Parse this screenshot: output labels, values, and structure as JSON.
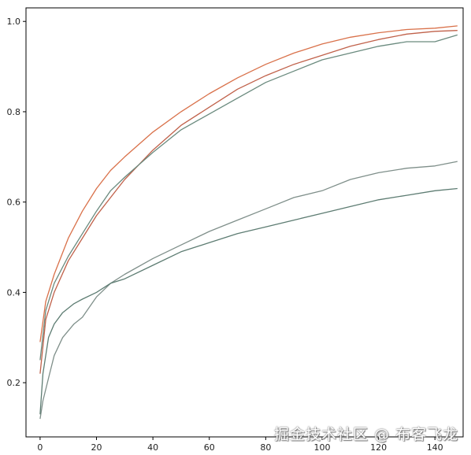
{
  "chart_data": {
    "type": "line",
    "title": "",
    "xlabel": "",
    "ylabel": "",
    "xlim": [
      -5,
      150
    ],
    "ylim": [
      0.08,
      1.03
    ],
    "xticks": [
      0,
      20,
      40,
      60,
      80,
      100,
      120,
      140
    ],
    "yticks": [
      0.2,
      0.4,
      0.6,
      0.8,
      1.0
    ],
    "ytick_labels": [
      "0.2",
      "0.4",
      "0.6",
      "0.8",
      "1.0"
    ],
    "grid": false,
    "legend": "none",
    "series": [
      {
        "color": "#d9714a",
        "points": [
          [
            0,
            0.29
          ],
          [
            2,
            0.38
          ],
          [
            5,
            0.44
          ],
          [
            10,
            0.52
          ],
          [
            15,
            0.58
          ],
          [
            20,
            0.63
          ],
          [
            25,
            0.67
          ],
          [
            30,
            0.7
          ],
          [
            40,
            0.755
          ],
          [
            50,
            0.8
          ],
          [
            60,
            0.84
          ],
          [
            70,
            0.875
          ],
          [
            80,
            0.905
          ],
          [
            90,
            0.93
          ],
          [
            100,
            0.95
          ],
          [
            110,
            0.965
          ],
          [
            120,
            0.975
          ],
          [
            130,
            0.982
          ],
          [
            140,
            0.985
          ],
          [
            148,
            0.99
          ]
        ]
      },
      {
        "color": "#c0614a",
        "points": [
          [
            0,
            0.22
          ],
          [
            2,
            0.34
          ],
          [
            5,
            0.4
          ],
          [
            10,
            0.47
          ],
          [
            15,
            0.52
          ],
          [
            20,
            0.57
          ],
          [
            25,
            0.61
          ],
          [
            30,
            0.65
          ],
          [
            40,
            0.715
          ],
          [
            50,
            0.77
          ],
          [
            60,
            0.81
          ],
          [
            70,
            0.85
          ],
          [
            80,
            0.88
          ],
          [
            90,
            0.905
          ],
          [
            100,
            0.925
          ],
          [
            110,
            0.945
          ],
          [
            120,
            0.96
          ],
          [
            130,
            0.972
          ],
          [
            140,
            0.978
          ],
          [
            148,
            0.98
          ]
        ]
      },
      {
        "color": "#6a8a7e",
        "points": [
          [
            0,
            0.25
          ],
          [
            2,
            0.36
          ],
          [
            5,
            0.42
          ],
          [
            10,
            0.48
          ],
          [
            15,
            0.53
          ],
          [
            20,
            0.58
          ],
          [
            25,
            0.625
          ],
          [
            30,
            0.655
          ],
          [
            40,
            0.71
          ],
          [
            50,
            0.76
          ],
          [
            60,
            0.795
          ],
          [
            70,
            0.83
          ],
          [
            80,
            0.865
          ],
          [
            90,
            0.89
          ],
          [
            100,
            0.915
          ],
          [
            110,
            0.93
          ],
          [
            120,
            0.945
          ],
          [
            130,
            0.955
          ],
          [
            140,
            0.955
          ],
          [
            148,
            0.97
          ]
        ]
      },
      {
        "color": "#7f8f8a",
        "points": [
          [
            0,
            0.12
          ],
          [
            1,
            0.16
          ],
          [
            3,
            0.21
          ],
          [
            5,
            0.26
          ],
          [
            8,
            0.3
          ],
          [
            12,
            0.33
          ],
          [
            15,
            0.345
          ],
          [
            20,
            0.39
          ],
          [
            25,
            0.42
          ],
          [
            30,
            0.44
          ],
          [
            40,
            0.475
          ],
          [
            50,
            0.505
          ],
          [
            60,
            0.535
          ],
          [
            70,
            0.56
          ],
          [
            80,
            0.585
          ],
          [
            90,
            0.61
          ],
          [
            100,
            0.625
          ],
          [
            110,
            0.65
          ],
          [
            120,
            0.665
          ],
          [
            130,
            0.675
          ],
          [
            140,
            0.68
          ],
          [
            148,
            0.69
          ]
        ]
      },
      {
        "color": "#5d7c72",
        "points": [
          [
            0,
            0.13
          ],
          [
            1,
            0.22
          ],
          [
            3,
            0.3
          ],
          [
            5,
            0.33
          ],
          [
            8,
            0.355
          ],
          [
            12,
            0.375
          ],
          [
            15,
            0.385
          ],
          [
            20,
            0.4
          ],
          [
            25,
            0.42
          ],
          [
            30,
            0.43
          ],
          [
            40,
            0.46
          ],
          [
            50,
            0.49
          ],
          [
            60,
            0.51
          ],
          [
            70,
            0.53
          ],
          [
            80,
            0.545
          ],
          [
            90,
            0.56
          ],
          [
            100,
            0.575
          ],
          [
            110,
            0.59
          ],
          [
            120,
            0.605
          ],
          [
            130,
            0.615
          ],
          [
            140,
            0.625
          ],
          [
            148,
            0.63
          ]
        ]
      }
    ]
  },
  "watermark": "掘金技术社区 @ 布客飞龙"
}
